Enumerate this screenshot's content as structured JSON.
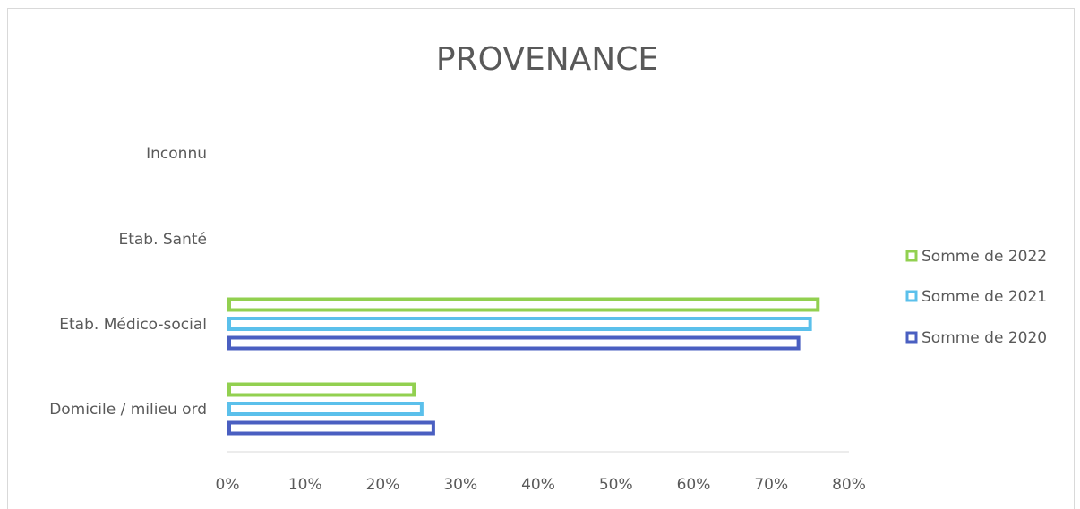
{
  "chart_data": {
    "type": "bar",
    "orientation": "horizontal",
    "title": "PROVENANCE",
    "categories": [
      "Inconnu",
      "Etab. Santé",
      "Etab. Médico-social",
      "Domicile / milieu ord"
    ],
    "series": [
      {
        "name": "Somme de 2022",
        "color": "#92d050",
        "values": [
          0,
          0,
          76,
          24
        ]
      },
      {
        "name": "Somme de 2021",
        "color": "#5bc0eb",
        "values": [
          0,
          0,
          75,
          25
        ]
      },
      {
        "name": "Somme de 2020",
        "color": "#4a5fc1",
        "values": [
          0,
          0,
          73.5,
          26.5
        ]
      }
    ],
    "xlim": [
      0,
      80
    ],
    "xticks": [
      "0%",
      "10%",
      "20%",
      "30%",
      "40%",
      "50%",
      "60%",
      "70%",
      "80%"
    ],
    "xtick_values": [
      0,
      10,
      20,
      30,
      40,
      50,
      60,
      70,
      80
    ],
    "grid": false,
    "legend_position": "right"
  }
}
